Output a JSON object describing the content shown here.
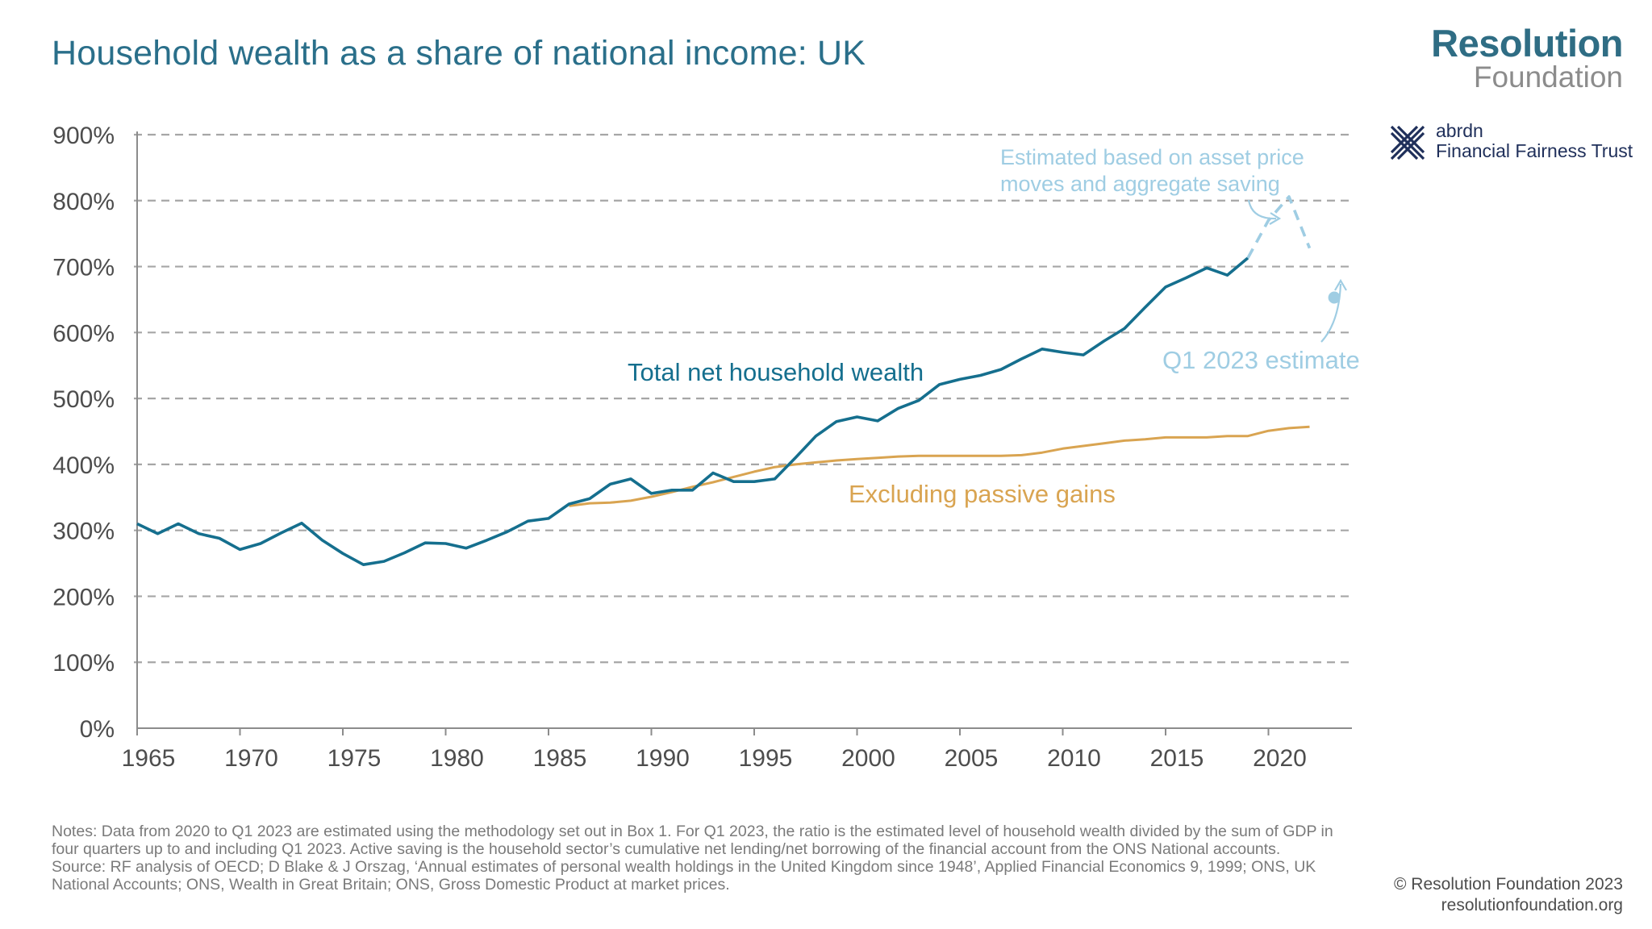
{
  "header": {
    "title": "Household wealth as a share of national income: UK"
  },
  "logos": {
    "rf_top": "Resolution",
    "rf_bottom": "Foundation",
    "abrdn_name": "abrdn",
    "abrdn_trust": "Financial Fairness Trust"
  },
  "colors": {
    "wealth": "#156f8e",
    "passive": "#d9a451",
    "estimate": "#9fcde3",
    "grid": "#a6a6a6",
    "axis": "#8c8c8c",
    "text": "#4d4d4d"
  },
  "chart_data": {
    "type": "line",
    "title": "Household wealth as a share of national income: UK",
    "xlabel": "",
    "ylabel": "",
    "xlim": [
      1965,
      2024
    ],
    "ylim": [
      0,
      900
    ],
    "grid": true,
    "x_ticks": [
      "1965",
      "1970",
      "1975",
      "1980",
      "1985",
      "1990",
      "1995",
      "2000",
      "2005",
      "2010",
      "2015",
      "2020"
    ],
    "y_ticks": [
      "0%",
      "100%",
      "200%",
      "300%",
      "400%",
      "500%",
      "600%",
      "700%",
      "800%",
      "900%"
    ],
    "series": [
      {
        "name": "Total net household wealth",
        "x": [
          1965,
          1966,
          1967,
          1968,
          1969,
          1970,
          1971,
          1972,
          1973,
          1974,
          1975,
          1976,
          1977,
          1978,
          1979,
          1980,
          1981,
          1982,
          1983,
          1984,
          1985,
          1986,
          1987,
          1988,
          1989,
          1990,
          1991,
          1992,
          1993,
          1994,
          1995,
          1996,
          1997,
          1998,
          1999,
          2000,
          2001,
          2002,
          2003,
          2004,
          2005,
          2006,
          2007,
          2008,
          2009,
          2010,
          2011,
          2012,
          2013,
          2014,
          2015,
          2016,
          2017,
          2018,
          2019
        ],
        "values": [
          310,
          295,
          310,
          295,
          288,
          271,
          280,
          296,
          311,
          285,
          265,
          248,
          253,
          266,
          281,
          280,
          273,
          285,
          298,
          314,
          318,
          340,
          348,
          370,
          378,
          356,
          361,
          361,
          387,
          374,
          374,
          378,
          410,
          443,
          465,
          472,
          466,
          485,
          497,
          521,
          529,
          535,
          544,
          560,
          575,
          570,
          566,
          587,
          606,
          638,
          669,
          683,
          698,
          687,
          713
        ]
      },
      {
        "name": "Excluding passive gains",
        "x": [
          1986,
          1987,
          1988,
          1989,
          1990,
          1991,
          1992,
          1993,
          1994,
          1995,
          1996,
          1997,
          1998,
          1999,
          2000,
          2001,
          2002,
          2003,
          2004,
          2005,
          2006,
          2007,
          2008,
          2009,
          2010,
          2011,
          2012,
          2013,
          2014,
          2015,
          2016,
          2017,
          2018,
          2019,
          2020,
          2021,
          2022
        ],
        "values": [
          337,
          341,
          342,
          345,
          351,
          358,
          366,
          373,
          381,
          389,
          396,
          400,
          403,
          406,
          408,
          410,
          412,
          413,
          413,
          413,
          413,
          413,
          414,
          418,
          424,
          428,
          432,
          436,
          438,
          441,
          441,
          441,
          443,
          443,
          451,
          455,
          457
        ]
      },
      {
        "name": "Estimated based on asset price moves and aggregate saving",
        "x": [
          2019,
          2020,
          2021,
          2022
        ],
        "values": [
          713,
          770,
          806,
          728
        ]
      },
      {
        "name": "Q1 2023 estimate",
        "x": [
          2023.2
        ],
        "values": [
          653
        ]
      }
    ],
    "annotations": {
      "wealth_label": "Total net household wealth",
      "passive_label": "Excluding passive gains",
      "estimate_label_line1": "Estimated based on asset price",
      "estimate_label_line2": "moves and aggregate saving",
      "q1_label": "Q1 2023 estimate"
    }
  },
  "notes": {
    "notes_text": "Notes: Data from 2020 to Q1 2023 are estimated using the methodology set out in Box 1. For Q1 2023, the ratio is the estimated level of household wealth divided by the sum of GDP in four quarters up to and including Q1 2023. Active saving is the household sector’s cumulative net lending/net borrowing of the financial account from the ONS National accounts.",
    "source_text": "Source: RF analysis of OECD; D Blake & J Orszag, ‘Annual estimates of personal wealth holdings in the United Kingdom since 1948’, Applied Financial Economics 9, 1999; ONS, UK National Accounts; ONS, Wealth in Great Britain; ONS, Gross Domestic Product at market prices."
  },
  "footer": {
    "copyright": "© Resolution Foundation 2023",
    "website": "resolutionfoundation.org"
  }
}
